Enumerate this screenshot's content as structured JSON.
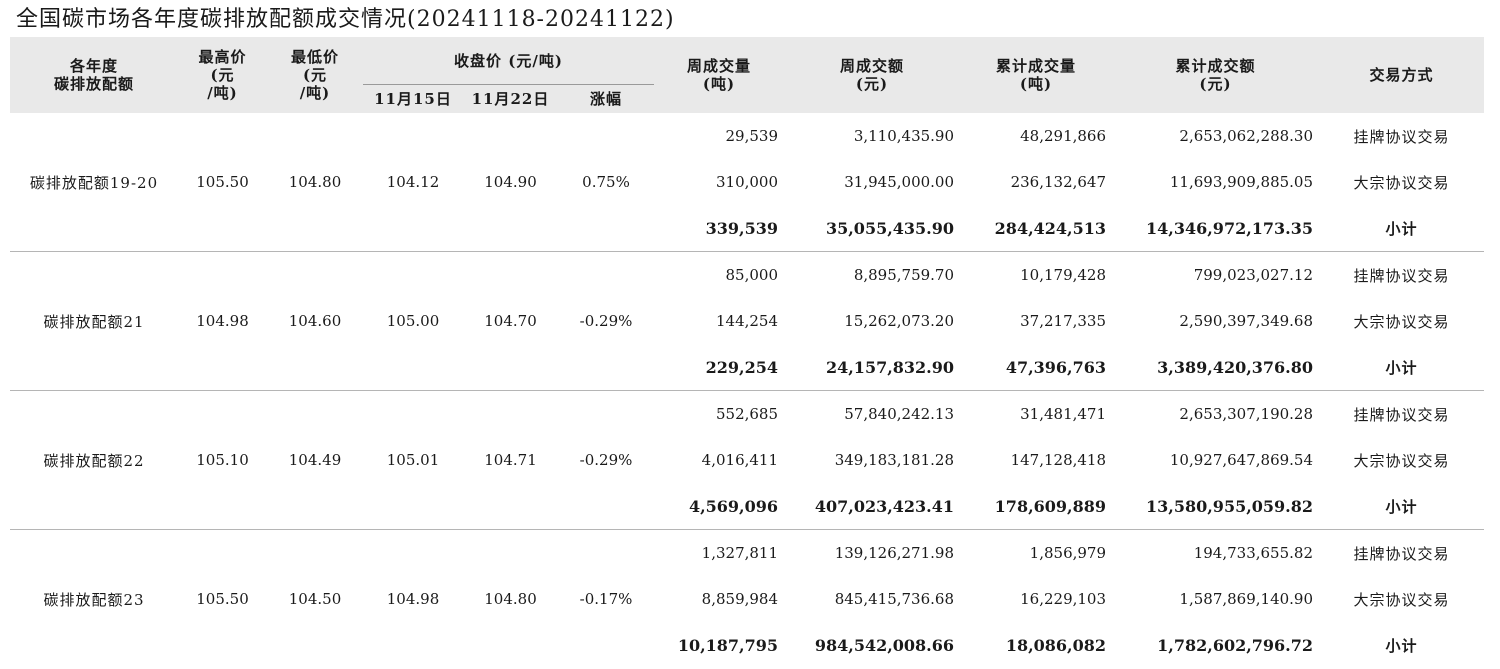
{
  "title": "全国碳市场各年度碳排放配额成交情况(20241118-20241122)",
  "header": {
    "col_name_line1": "各年度",
    "col_name_line2": "碳排放配额",
    "high_line1": "最高价",
    "high_line2": "(元",
    "high_line3": "/吨)",
    "low_line1": "最低价",
    "low_line2": "(元",
    "low_line3": "/吨)",
    "close_group": "收盘价 (元/吨)",
    "close_date1": "11月15日",
    "close_date2": "11月22日",
    "change": "涨幅",
    "week_volume_line1": "周成交量",
    "week_volume_line2": "(吨)",
    "week_amount_line1": "周成交额",
    "week_amount_line2": "(元)",
    "cum_volume_line1": "累计成交量",
    "cum_volume_line2": "(吨)",
    "cum_amount_line1": "累计成交额",
    "cum_amount_line2": "(元)",
    "method": "交易方式"
  },
  "groups": [
    {
      "name": "碳排放配额19-20",
      "high": "105.50",
      "low": "104.80",
      "close_1115": "104.12",
      "close_1122": "104.90",
      "change": "0.75%",
      "rows": [
        {
          "week_volume": "29,539",
          "week_amount": "3,110,435.90",
          "cum_volume": "48,291,866",
          "cum_amount": "2,653,062,288.30",
          "method": "挂牌协议交易"
        },
        {
          "week_volume": "310,000",
          "week_amount": "31,945,000.00",
          "cum_volume": "236,132,647",
          "cum_amount": "11,693,909,885.05",
          "method": "大宗协议交易"
        },
        {
          "week_volume": "339,539",
          "week_amount": "35,055,435.90",
          "cum_volume": "284,424,513",
          "cum_amount": "14,346,972,173.35",
          "method": "小计"
        }
      ]
    },
    {
      "name": "碳排放配额21",
      "high": "104.98",
      "low": "104.60",
      "close_1115": "105.00",
      "close_1122": "104.70",
      "change": "-0.29%",
      "rows": [
        {
          "week_volume": "85,000",
          "week_amount": "8,895,759.70",
          "cum_volume": "10,179,428",
          "cum_amount": "799,023,027.12",
          "method": "挂牌协议交易"
        },
        {
          "week_volume": "144,254",
          "week_amount": "15,262,073.20",
          "cum_volume": "37,217,335",
          "cum_amount": "2,590,397,349.68",
          "method": "大宗协议交易"
        },
        {
          "week_volume": "229,254",
          "week_amount": "24,157,832.90",
          "cum_volume": "47,396,763",
          "cum_amount": "3,389,420,376.80",
          "method": "小计"
        }
      ]
    },
    {
      "name": "碳排放配额22",
      "high": "105.10",
      "low": "104.49",
      "close_1115": "105.01",
      "close_1122": "104.71",
      "change": "-0.29%",
      "rows": [
        {
          "week_volume": "552,685",
          "week_amount": "57,840,242.13",
          "cum_volume": "31,481,471",
          "cum_amount": "2,653,307,190.28",
          "method": "挂牌协议交易"
        },
        {
          "week_volume": "4,016,411",
          "week_amount": "349,183,181.28",
          "cum_volume": "147,128,418",
          "cum_amount": "10,927,647,869.54",
          "method": "大宗协议交易"
        },
        {
          "week_volume": "4,569,096",
          "week_amount": "407,023,423.41",
          "cum_volume": "178,609,889",
          "cum_amount": "13,580,955,059.82",
          "method": "小计"
        }
      ]
    },
    {
      "name": "碳排放配额23",
      "high": "105.50",
      "low": "104.50",
      "close_1115": "104.98",
      "close_1122": "104.80",
      "change": "-0.17%",
      "rows": [
        {
          "week_volume": "1,327,811",
          "week_amount": "139,126,271.98",
          "cum_volume": "1,856,979",
          "cum_amount": "194,733,655.82",
          "method": "挂牌协议交易"
        },
        {
          "week_volume": "8,859,984",
          "week_amount": "845,415,736.68",
          "cum_volume": "16,229,103",
          "cum_amount": "1,587,869,140.90",
          "method": "大宗协议交易"
        },
        {
          "week_volume": "10,187,795",
          "week_amount": "984,542,008.66",
          "cum_volume": "18,086,082",
          "cum_amount": "1,782,602,796.72",
          "method": "小计"
        }
      ]
    }
  ]
}
